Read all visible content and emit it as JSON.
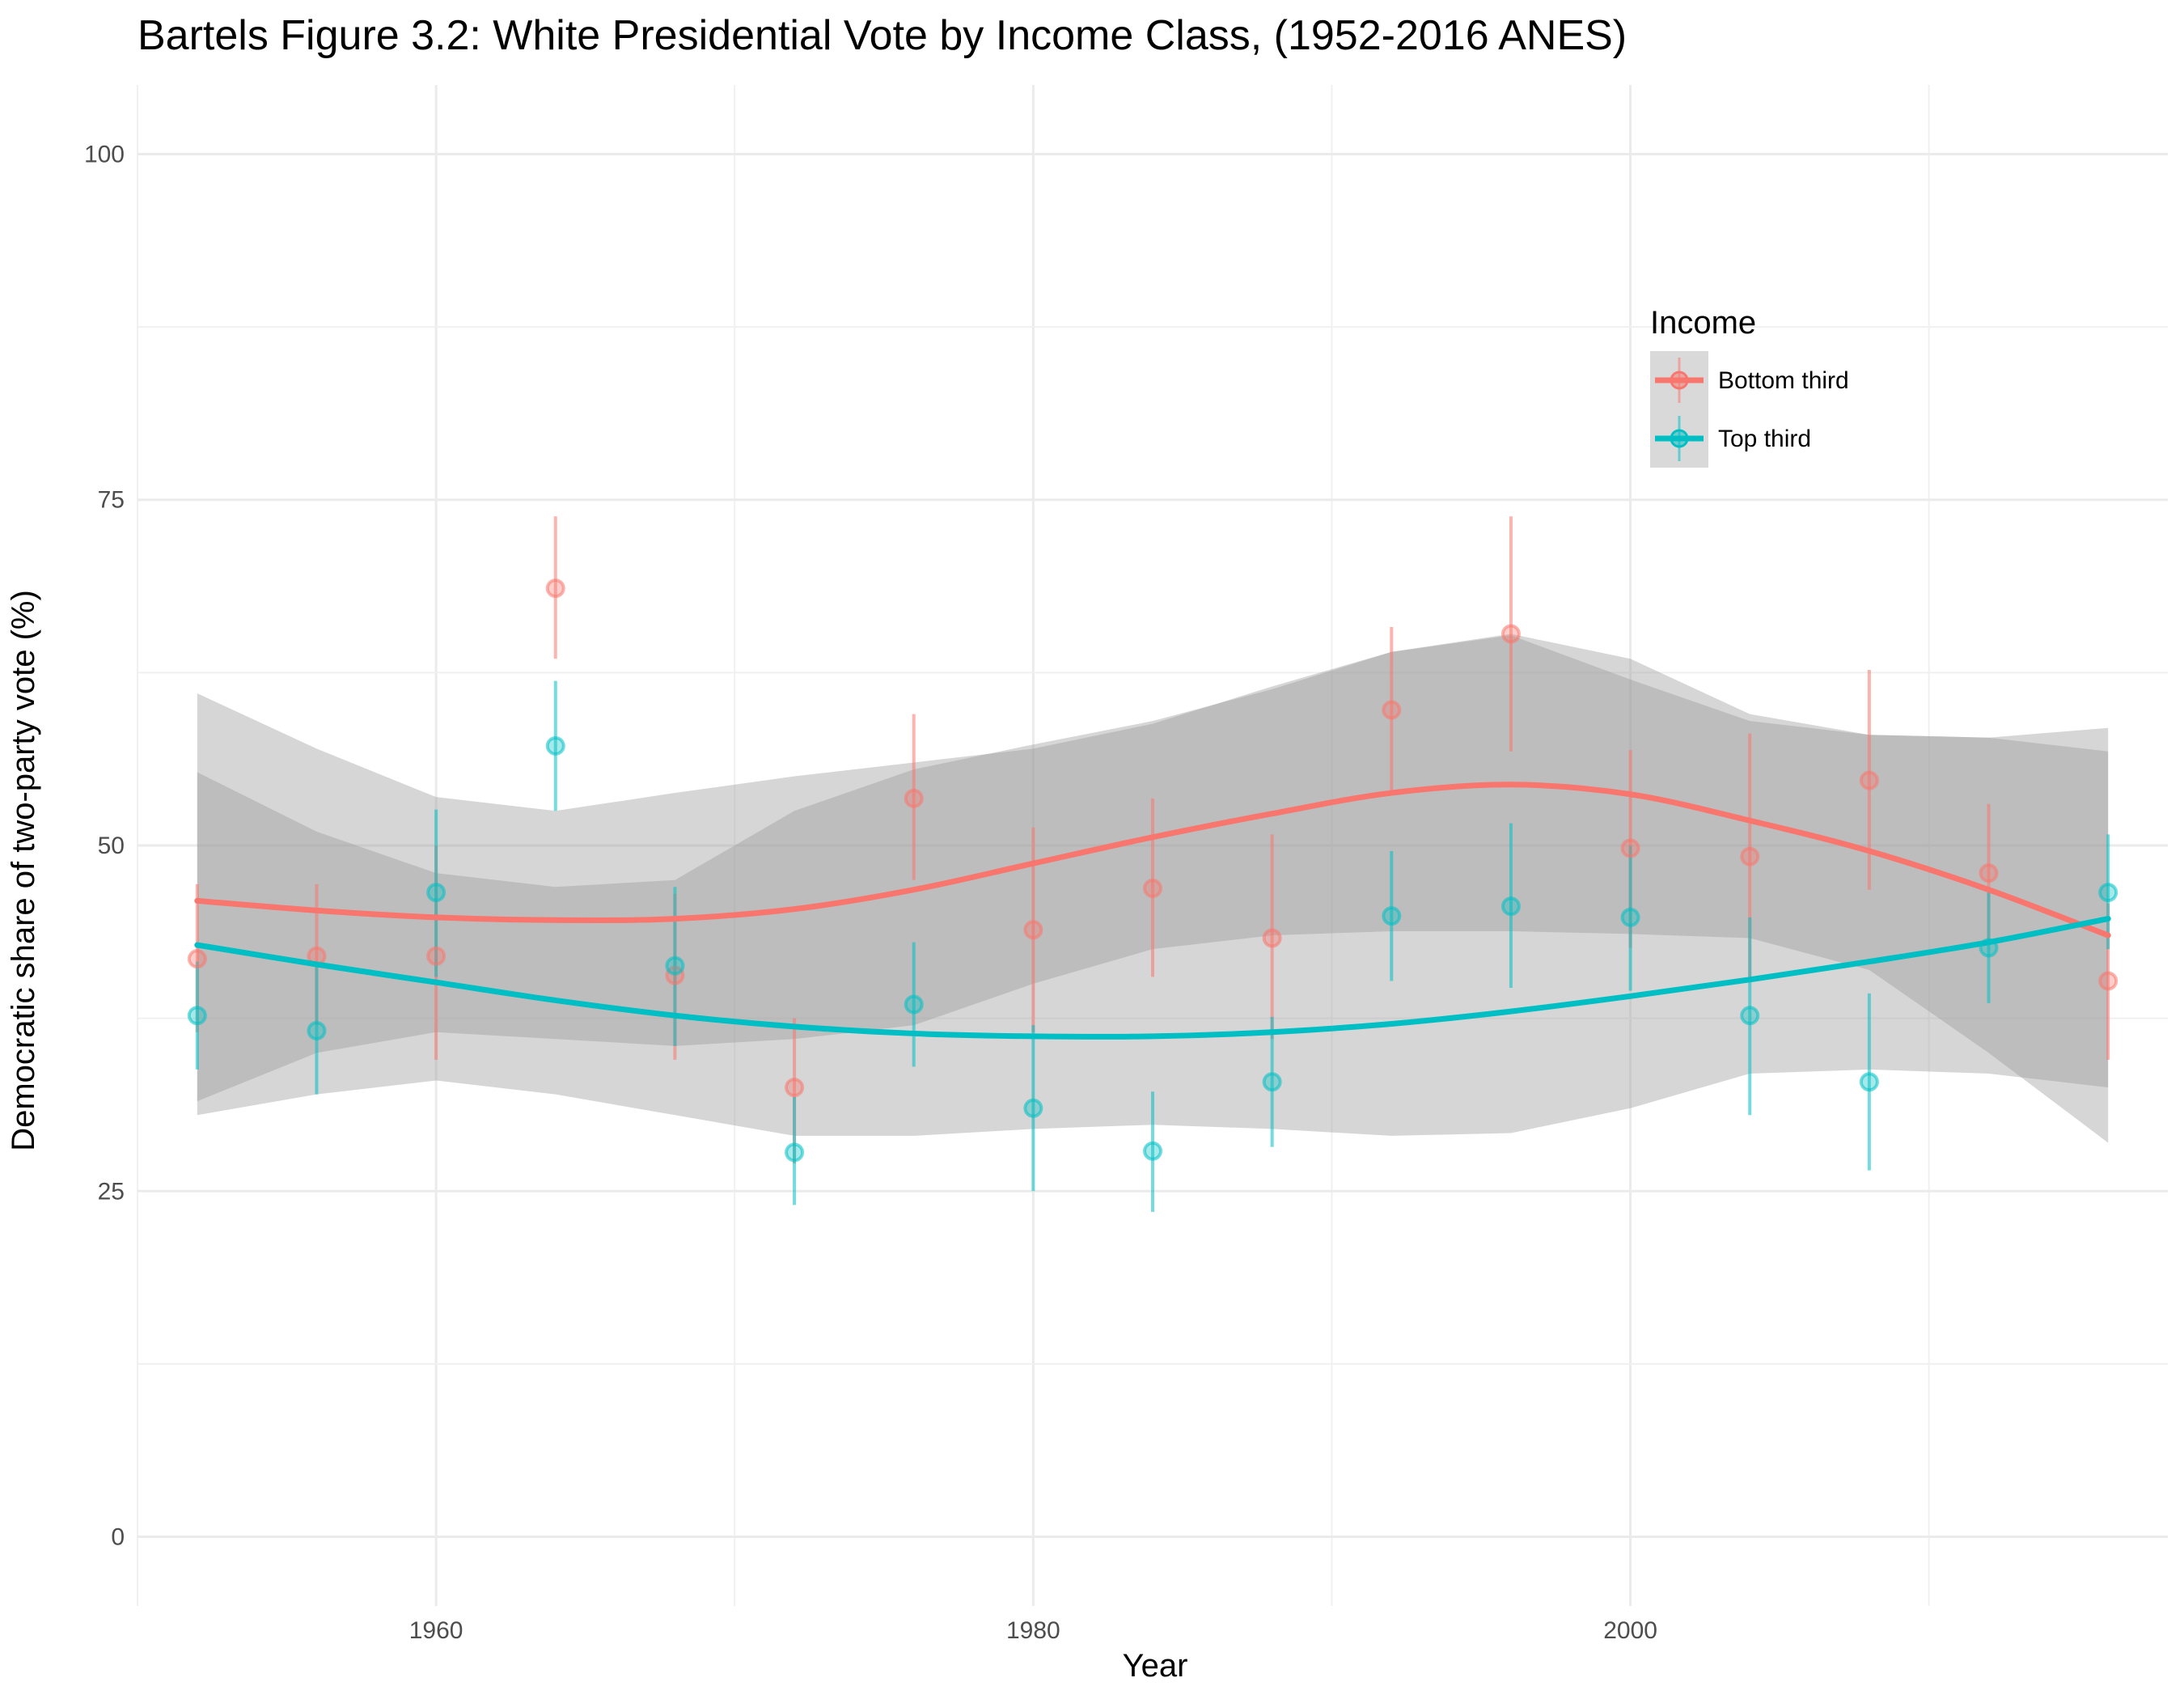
{
  "chart_data": {
    "type": "scatter",
    "title": "Bartels Figure 3.2: White Presidential Vote by Income Class, (1952-2016 ANES)",
    "xlabel": "Year",
    "ylabel": "Democratic share of two-party vote (%)",
    "xlim": [
      1950,
      2018
    ],
    "ylim": [
      -5,
      105
    ],
    "x_ticks": [
      1960,
      1980,
      2000
    ],
    "y_ticks": [
      0,
      25,
      50,
      75,
      100
    ],
    "grid": true,
    "legend": {
      "title": "Income",
      "placement": "top-right (inside plot)"
    },
    "series": [
      {
        "name": "Bottom third",
        "color": "#F8766D",
        "points": [
          {
            "x": 1952,
            "y": 41.8,
            "lo": 36.5,
            "hi": 47.2
          },
          {
            "x": 1956,
            "y": 42.0,
            "lo": 37.0,
            "hi": 47.2
          },
          {
            "x": 1960,
            "y": 42.0,
            "lo": 34.5,
            "hi": 50.0
          },
          {
            "x": 1964,
            "y": 68.6,
            "lo": 63.5,
            "hi": 73.8
          },
          {
            "x": 1968,
            "y": 40.6,
            "lo": 34.5,
            "hi": 46.5
          },
          {
            "x": 1972,
            "y": 32.5,
            "lo": 27.0,
            "hi": 37.5
          },
          {
            "x": 1976,
            "y": 53.4,
            "lo": 47.5,
            "hi": 59.5
          },
          {
            "x": 1980,
            "y": 43.9,
            "lo": 36.5,
            "hi": 51.3
          },
          {
            "x": 1984,
            "y": 46.9,
            "lo": 40.5,
            "hi": 53.4
          },
          {
            "x": 1988,
            "y": 43.3,
            "lo": 36.0,
            "hi": 50.8
          },
          {
            "x": 1992,
            "y": 59.8,
            "lo": 53.8,
            "hi": 65.8
          },
          {
            "x": 1996,
            "y": 65.3,
            "lo": 56.8,
            "hi": 73.8
          },
          {
            "x": 2000,
            "y": 49.8,
            "lo": 42.6,
            "hi": 56.9
          },
          {
            "x": 2004,
            "y": 49.2,
            "lo": 40.5,
            "hi": 58.1
          },
          {
            "x": 2008,
            "y": 54.7,
            "lo": 46.8,
            "hi": 62.7
          },
          {
            "x": 2012,
            "y": 48.0,
            "lo": 43.0,
            "hi": 53.0
          },
          {
            "x": 2016,
            "y": 40.2,
            "lo": 34.5,
            "hi": 45.8
          }
        ],
        "trend": [
          {
            "x": 1952,
            "y": 46.0
          },
          {
            "x": 1956,
            "y": 45.3
          },
          {
            "x": 1960,
            "y": 44.8
          },
          {
            "x": 1964,
            "y": 44.6
          },
          {
            "x": 1968,
            "y": 44.7
          },
          {
            "x": 1972,
            "y": 45.4
          },
          {
            "x": 1976,
            "y": 46.8
          },
          {
            "x": 1980,
            "y": 48.7
          },
          {
            "x": 1984,
            "y": 50.6
          },
          {
            "x": 1988,
            "y": 52.3
          },
          {
            "x": 1992,
            "y": 53.8
          },
          {
            "x": 1996,
            "y": 54.4
          },
          {
            "x": 2000,
            "y": 53.7
          },
          {
            "x": 2004,
            "y": 51.8
          },
          {
            "x": 2008,
            "y": 49.6
          },
          {
            "x": 2012,
            "y": 46.8
          },
          {
            "x": 2016,
            "y": 43.5
          }
        ],
        "band": [
          {
            "x": 1952,
            "lo": 31.5,
            "hi": 55.3
          },
          {
            "x": 1956,
            "lo": 35.0,
            "hi": 51.0
          },
          {
            "x": 1960,
            "lo": 36.5,
            "hi": 48.0
          },
          {
            "x": 1964,
            "lo": 36.0,
            "hi": 47.0
          },
          {
            "x": 1968,
            "lo": 35.5,
            "hi": 47.5
          },
          {
            "x": 1972,
            "lo": 36.0,
            "hi": 52.5
          },
          {
            "x": 1976,
            "lo": 37.0,
            "hi": 55.5
          },
          {
            "x": 1980,
            "lo": 40.0,
            "hi": 57.3
          },
          {
            "x": 1984,
            "lo": 42.5,
            "hi": 59.0
          },
          {
            "x": 1988,
            "lo": 43.5,
            "hi": 61.3
          },
          {
            "x": 1992,
            "lo": 43.8,
            "hi": 64.0
          },
          {
            "x": 1996,
            "lo": 43.8,
            "hi": 65.3
          },
          {
            "x": 2000,
            "lo": 43.6,
            "hi": 63.5
          },
          {
            "x": 2004,
            "lo": 43.3,
            "hi": 59.5
          },
          {
            "x": 2008,
            "lo": 41.0,
            "hi": 58.0
          },
          {
            "x": 2012,
            "lo": 35.0,
            "hi": 57.8
          },
          {
            "x": 2016,
            "lo": 28.5,
            "hi": 58.5
          }
        ]
      },
      {
        "name": "Top third",
        "color": "#00BFC4",
        "points": [
          {
            "x": 1952,
            "y": 37.7,
            "lo": 33.8,
            "hi": 41.6
          },
          {
            "x": 1956,
            "y": 36.6,
            "lo": 32.0,
            "hi": 41.3
          },
          {
            "x": 1960,
            "y": 46.6,
            "lo": 40.5,
            "hi": 52.6
          },
          {
            "x": 1964,
            "y": 57.2,
            "lo": 52.5,
            "hi": 61.9
          },
          {
            "x": 1968,
            "y": 41.3,
            "lo": 35.5,
            "hi": 47.0
          },
          {
            "x": 1972,
            "y": 27.8,
            "lo": 24.0,
            "hi": 31.8
          },
          {
            "x": 1976,
            "y": 38.5,
            "lo": 34.0,
            "hi": 43.0
          },
          {
            "x": 1980,
            "y": 31.0,
            "lo": 25.0,
            "hi": 37.0
          },
          {
            "x": 1984,
            "y": 27.9,
            "lo": 23.5,
            "hi": 32.2
          },
          {
            "x": 1988,
            "y": 32.9,
            "lo": 28.2,
            "hi": 37.6
          },
          {
            "x": 1992,
            "y": 44.9,
            "lo": 40.2,
            "hi": 49.6
          },
          {
            "x": 1996,
            "y": 45.6,
            "lo": 39.7,
            "hi": 51.6
          },
          {
            "x": 2000,
            "y": 44.8,
            "lo": 39.5,
            "hi": 50.0
          },
          {
            "x": 2004,
            "y": 37.7,
            "lo": 30.5,
            "hi": 44.8
          },
          {
            "x": 2008,
            "y": 32.9,
            "lo": 26.5,
            "hi": 39.3
          },
          {
            "x": 2012,
            "y": 42.6,
            "lo": 38.6,
            "hi": 46.6
          },
          {
            "x": 2016,
            "y": 46.6,
            "lo": 42.5,
            "hi": 50.8
          }
        ],
        "trend": [
          {
            "x": 1952,
            "y": 42.8
          },
          {
            "x": 1956,
            "y": 41.4
          },
          {
            "x": 1960,
            "y": 40.1
          },
          {
            "x": 1964,
            "y": 38.8
          },
          {
            "x": 1968,
            "y": 37.7
          },
          {
            "x": 1972,
            "y": 36.9
          },
          {
            "x": 1976,
            "y": 36.4
          },
          {
            "x": 1980,
            "y": 36.2
          },
          {
            "x": 1984,
            "y": 36.2
          },
          {
            "x": 1988,
            "y": 36.5
          },
          {
            "x": 1992,
            "y": 37.1
          },
          {
            "x": 1996,
            "y": 38.0
          },
          {
            "x": 2000,
            "y": 39.1
          },
          {
            "x": 2004,
            "y": 40.3
          },
          {
            "x": 2008,
            "y": 41.6
          },
          {
            "x": 2012,
            "y": 43.0
          },
          {
            "x": 2016,
            "y": 44.7
          }
        ],
        "band": [
          {
            "x": 1952,
            "lo": 30.5,
            "hi": 61.0
          },
          {
            "x": 1956,
            "lo": 32.0,
            "hi": 57.0
          },
          {
            "x": 1960,
            "lo": 33.0,
            "hi": 53.5
          },
          {
            "x": 1964,
            "lo": 32.0,
            "hi": 52.5
          },
          {
            "x": 1968,
            "lo": 30.5,
            "hi": 53.8
          },
          {
            "x": 1972,
            "lo": 29.0,
            "hi": 55.0
          },
          {
            "x": 1976,
            "lo": 29.0,
            "hi": 56.0
          },
          {
            "x": 1980,
            "lo": 29.5,
            "hi": 57.0
          },
          {
            "x": 1984,
            "lo": 29.8,
            "hi": 58.8
          },
          {
            "x": 1988,
            "lo": 29.5,
            "hi": 61.5
          },
          {
            "x": 1992,
            "lo": 29.0,
            "hi": 64.0
          },
          {
            "x": 1996,
            "lo": 29.2,
            "hi": 65.2
          },
          {
            "x": 2000,
            "lo": 31.0,
            "hi": 62.0
          },
          {
            "x": 2004,
            "lo": 33.5,
            "hi": 59.0
          },
          {
            "x": 2008,
            "lo": 33.8,
            "hi": 58.0
          },
          {
            "x": 2012,
            "lo": 33.5,
            "hi": 57.8
          },
          {
            "x": 2016,
            "lo": 32.5,
            "hi": 56.8
          }
        ]
      }
    ]
  }
}
